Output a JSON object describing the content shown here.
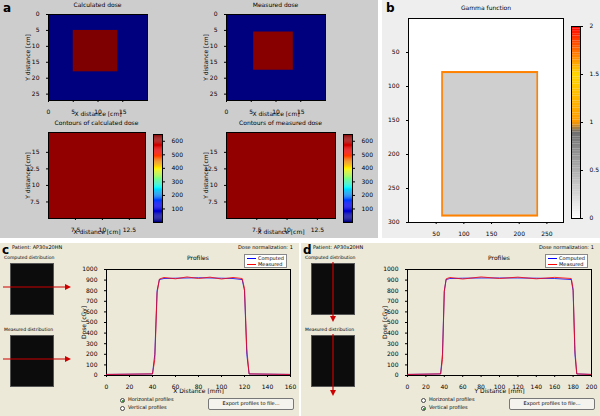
{
  "chart_data": [
    {
      "panel": "a",
      "type": "heatmap",
      "title": "Calculated dose",
      "xlabel": "X distance [cm]",
      "ylabel": "Y distance [cm]",
      "xlim": [
        0,
        20
      ],
      "xticks": [
        0,
        5,
        10,
        15
      ],
      "ylim": [
        0,
        27
      ],
      "yticks": [
        0,
        5,
        10,
        15,
        20,
        25
      ],
      "cells": [
        {
          "x": [
            0,
            20
          ],
          "y": [
            0,
            27
          ],
          "value": 0
        },
        {
          "x": [
            5,
            14
          ],
          "y": [
            5,
            18
          ],
          "value": 650
        }
      ],
      "color_range": [
        0,
        650
      ]
    },
    {
      "panel": "a",
      "type": "heatmap",
      "title": "Measured dose",
      "xlabel": "X distance [cm]",
      "ylabel": "Y distance [cm]",
      "xlim": [
        0,
        20
      ],
      "xticks": [
        0,
        5,
        10,
        15
      ],
      "ylim": [
        0,
        27
      ],
      "yticks": [
        0,
        5,
        10,
        15,
        20,
        25
      ],
      "cells": [
        {
          "x": [
            0,
            20
          ],
          "y": [
            0,
            27
          ],
          "value": 0
        },
        {
          "x": [
            5.5,
            13.5
          ],
          "y": [
            5.5,
            17.5
          ],
          "value": 640
        }
      ],
      "color_range": [
        0,
        650
      ]
    },
    {
      "panel": "a",
      "type": "contour",
      "title": "Contours of calculated dose",
      "xlabel": "X distance [cm]",
      "ylabel": "Y distance [cm]",
      "xlim": [
        5,
        14
      ],
      "xticks": [
        7.5,
        10,
        12.5
      ],
      "ylim": [
        5,
        18
      ],
      "yticks": [
        7.5,
        10,
        12.5,
        15
      ],
      "cells": [
        {
          "x": [
            5,
            14
          ],
          "y": [
            5,
            18
          ],
          "value": 630
        }
      ],
      "color_range": [
        0,
        650
      ],
      "colorbar_ticks": [
        100,
        200,
        300,
        400,
        500,
        600
      ]
    },
    {
      "panel": "a",
      "type": "contour",
      "title": "Contours of measured dose",
      "xlabel": "X distance [cm]",
      "ylabel": "Y distance [cm]",
      "xlim": [
        5,
        14
      ],
      "xticks": [
        7.5,
        10,
        12.5
      ],
      "ylim": [
        5,
        18
      ],
      "yticks": [
        7.5,
        10,
        12.5,
        15
      ],
      "cells": [
        {
          "x": [
            5,
            14
          ],
          "y": [
            5,
            18
          ],
          "value": 630
        }
      ],
      "color_range": [
        0,
        650
      ],
      "colorbar_ticks": [
        100,
        200,
        300,
        400,
        500,
        600
      ]
    },
    {
      "panel": "b",
      "type": "gamma",
      "title": "Gamma function",
      "xlim": [
        0,
        280
      ],
      "xticks": [
        50,
        100,
        150,
        200,
        250
      ],
      "ylim": [
        0,
        300
      ],
      "yticks": [
        50,
        100,
        150,
        200,
        250,
        300
      ],
      "cells": [
        {
          "x": [
            0,
            280
          ],
          "y": [
            0,
            300
          ],
          "value": 0
        },
        {
          "x": [
            60,
            235
          ],
          "y": [
            78,
            292
          ],
          "value": 1.7
        },
        {
          "x": [
            63,
            232
          ],
          "y": [
            81,
            289
          ],
          "value": 0.3
        }
      ],
      "color_range": [
        0,
        2
      ],
      "colorbar_ticks": [
        0,
        0.5,
        1,
        1.5,
        2
      ]
    },
    {
      "panel": "c",
      "type": "line",
      "title": "Profiles",
      "header": "Patient: AP30x20HN",
      "normalization": "Dose normalization: 1",
      "thumbnails": [
        "Computed distribution",
        "Measured distribution"
      ],
      "options": [
        "Horizontal profiles",
        "Vertical profiles"
      ],
      "selected_option": "Horizontal profiles",
      "button": "Export profiles to file...",
      "xlabel": "X Distance [mm]",
      "ylabel": "Dose [cGy]",
      "xlim": [
        0,
        160
      ],
      "xticks": [
        0,
        20,
        40,
        60,
        80,
        100,
        120,
        140,
        160
      ],
      "ylim": [
        0,
        1000
      ],
      "yticks": [
        0,
        100,
        200,
        300,
        400,
        500,
        600,
        700,
        800,
        900,
        1000
      ],
      "legend": "upper right",
      "x": [
        0,
        40,
        42,
        44,
        46,
        50,
        60,
        70,
        80,
        90,
        100,
        110,
        118,
        120,
        122,
        124,
        160
      ],
      "series": [
        {
          "name": "Computed",
          "color": "#0000ff",
          "values": [
            10,
            15,
            200,
            800,
            905,
            915,
            918,
            920,
            922,
            920,
            918,
            915,
            905,
            800,
            200,
            15,
            10
          ]
        },
        {
          "name": "Measured",
          "color": "#ff0000",
          "values": [
            10,
            15,
            150,
            780,
            910,
            925,
            912,
            930,
            915,
            928,
            910,
            925,
            915,
            820,
            250,
            15,
            10
          ]
        }
      ]
    },
    {
      "panel": "d",
      "type": "line",
      "title": "Profiles",
      "header": "Patient: AP30x20HN",
      "normalization": "Dose normalization: 1",
      "thumbnails": [
        "Computed distribution",
        "Measured distribution"
      ],
      "options": [
        "Horizontal profiles",
        "Vertical profiles"
      ],
      "selected_option": "Vertical profiles",
      "button": "Export profiles to file...",
      "xlabel": "Y Distance [mm]",
      "ylabel": "Dose [cGy]",
      "xlim": [
        0,
        200
      ],
      "xticks": [
        0,
        20,
        40,
        60,
        80,
        100,
        120,
        140,
        160,
        180,
        200
      ],
      "ylim": [
        0,
        1000
      ],
      "yticks": [
        0,
        100,
        200,
        300,
        400,
        500,
        600,
        700,
        800,
        900,
        1000
      ],
      "legend": "upper right",
      "x": [
        0,
        36,
        38,
        40,
        42,
        46,
        60,
        80,
        100,
        120,
        140,
        160,
        178,
        180,
        182,
        184,
        200
      ],
      "series": [
        {
          "name": "Computed",
          "color": "#0000ff",
          "values": [
            10,
            15,
            200,
            800,
            905,
            915,
            918,
            920,
            920,
            920,
            918,
            915,
            905,
            800,
            200,
            15,
            10
          ]
        },
        {
          "name": "Measured",
          "color": "#ff0000",
          "values": [
            10,
            15,
            150,
            790,
            912,
            925,
            910,
            930,
            915,
            928,
            912,
            926,
            915,
            820,
            240,
            15,
            10
          ]
        }
      ]
    }
  ]
}
